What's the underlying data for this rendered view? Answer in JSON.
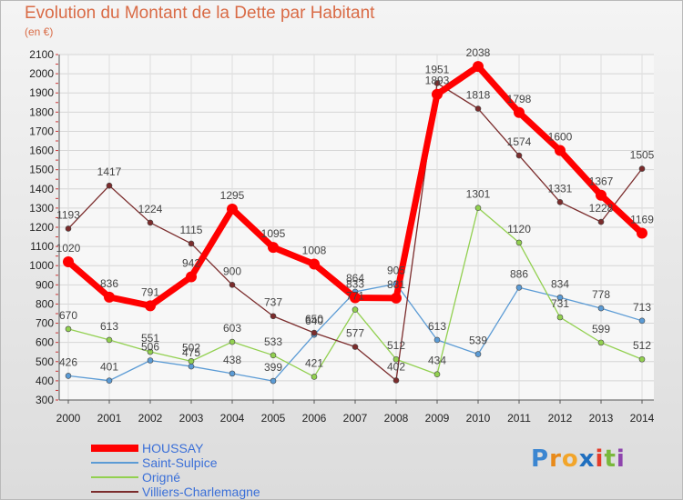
{
  "title": "Evolution du Montant de la Dette par Habitant",
  "subtitle": "(en €)",
  "logo": {
    "letters": [
      "P",
      "r",
      "o",
      "x",
      "i",
      "t",
      "i"
    ],
    "colors": [
      "#3b86d1",
      "#e88a1a",
      "#f2a52a",
      "#1f6fbf",
      "#e43b2a",
      "#79b83c",
      "#8e44ad"
    ]
  },
  "chart_data": {
    "type": "line",
    "title": "Evolution du Montant de la Dette par Habitant",
    "xlabel": "",
    "ylabel": "(en €)",
    "x": [
      "2000",
      "2001",
      "2002",
      "2003",
      "2004",
      "2005",
      "2006",
      "2007",
      "2008",
      "2009",
      "2010",
      "2011",
      "2012",
      "2013",
      "2014"
    ],
    "ylim": [
      300,
      2100
    ],
    "yticks": [
      300,
      400,
      500,
      600,
      700,
      800,
      900,
      1000,
      1100,
      1200,
      1300,
      1400,
      1500,
      1600,
      1700,
      1800,
      1900,
      2000,
      2100
    ],
    "grid": true,
    "legend": "bottom-left",
    "series": [
      {
        "name": "HOUSSAY",
        "color": "#ff0000",
        "values": [
          1020,
          836,
          791,
          942,
          1295,
          1095,
          1008,
          833,
          831,
          1893,
          2038,
          1798,
          1600,
          1367,
          1169
        ],
        "labels": [
          "1020",
          "836",
          "791",
          "942",
          "1295",
          "1095",
          "1008",
          "833",
          "831",
          "1893",
          "2038",
          "1798",
          "1600",
          "1367",
          "1169"
        ]
      },
      {
        "name": "Saint-Sulpice",
        "color": "#5b9bd5",
        "values": [
          426,
          401,
          506,
          475,
          438,
          399,
          640,
          864,
          905,
          613,
          539,
          886,
          834,
          778,
          713
        ],
        "labels": [
          "426",
          "401",
          "506",
          "475",
          "438",
          "399",
          "640",
          "864",
          "905",
          "613",
          "539",
          "886",
          "834",
          "778",
          "713"
        ]
      },
      {
        "name": "Origné",
        "color": "#92d050",
        "values": [
          670,
          613,
          551,
          502,
          603,
          533,
          421,
          771,
          512,
          434,
          1301,
          1120,
          731,
          599,
          512
        ],
        "labels": [
          "670",
          "613",
          "551",
          "502",
          "603",
          "533",
          "421",
          "771",
          "512",
          "434",
          "1301",
          "1120",
          "731",
          "599",
          "512"
        ]
      },
      {
        "name": "Villiers-Charlemagne",
        "color": "#7b2c2c",
        "values": [
          1193,
          1417,
          1224,
          1115,
          900,
          737,
          650,
          577,
          402,
          1951,
          1818,
          1574,
          1331,
          1228,
          1505
        ],
        "labels": [
          "1193",
          "1417",
          "1224",
          "1115",
          "900",
          "737",
          "650",
          "577",
          "402",
          "1951",
          "1818",
          "1574",
          "1331",
          "1228",
          "1505"
        ]
      }
    ]
  }
}
